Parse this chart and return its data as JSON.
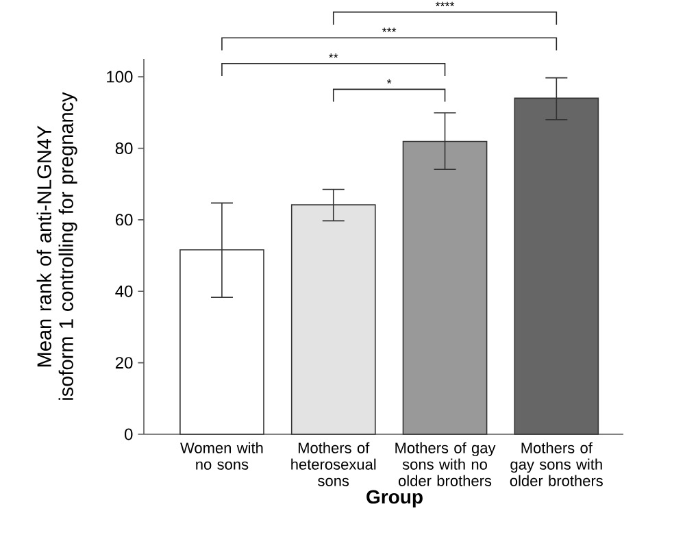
{
  "chart_data": {
    "type": "bar",
    "xlabel": "Group",
    "ylabel": "Mean rank of anti-NLGN4Y isoform 1 controlling for pregnancy",
    "categories": [
      "Women with no sons",
      "Mothers of heterosexual sons",
      "Mothers of gay sons with no older brothers",
      "Mothers of gay sons with older brothers"
    ],
    "values": [
      51.6,
      64.2,
      81.9,
      94.0
    ],
    "colors": [
      "#ffffff",
      "#e3e3e3",
      "#999999",
      "#666666"
    ],
    "errors": [
      [
        38.3,
        64.7
      ],
      [
        59.7,
        68.5
      ],
      [
        74.1,
        89.9
      ],
      [
        88.0,
        99.7
      ]
    ],
    "ylim": [
      0,
      105
    ],
    "yticks": [
      0,
      20,
      40,
      60,
      80,
      100
    ],
    "annotations": [
      "*",
      "**",
      "***",
      "****"
    ]
  }
}
